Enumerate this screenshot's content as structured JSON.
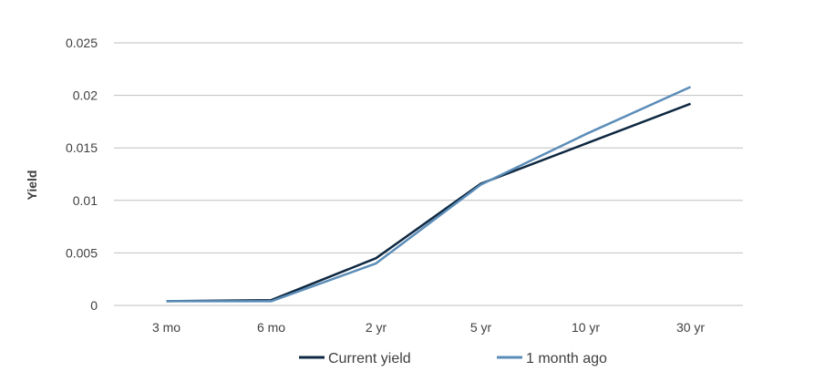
{
  "chart_data": {
    "type": "line",
    "title": "",
    "xlabel": "",
    "ylabel": "Yield",
    "categories": [
      "3 mo",
      "6 mo",
      "2 yr",
      "5 yr",
      "10 yr",
      "30 yr"
    ],
    "ylim": [
      0,
      0.025
    ],
    "yticks": [
      "0",
      "0.005",
      "0.01",
      "0.015",
      "0.02",
      "0.025"
    ],
    "grid": true,
    "legend_position": "bottom",
    "series": [
      {
        "name": "Current yield",
        "color": "#0e2841",
        "values": [
          0.0004,
          0.0005,
          0.0045,
          0.0116,
          0.0154,
          0.0192
        ]
      },
      {
        "name": "1 month ago",
        "color": "#5b8db8",
        "values": [
          0.0004,
          0.0004,
          0.004,
          0.0115,
          0.0163,
          0.0208
        ]
      }
    ]
  }
}
